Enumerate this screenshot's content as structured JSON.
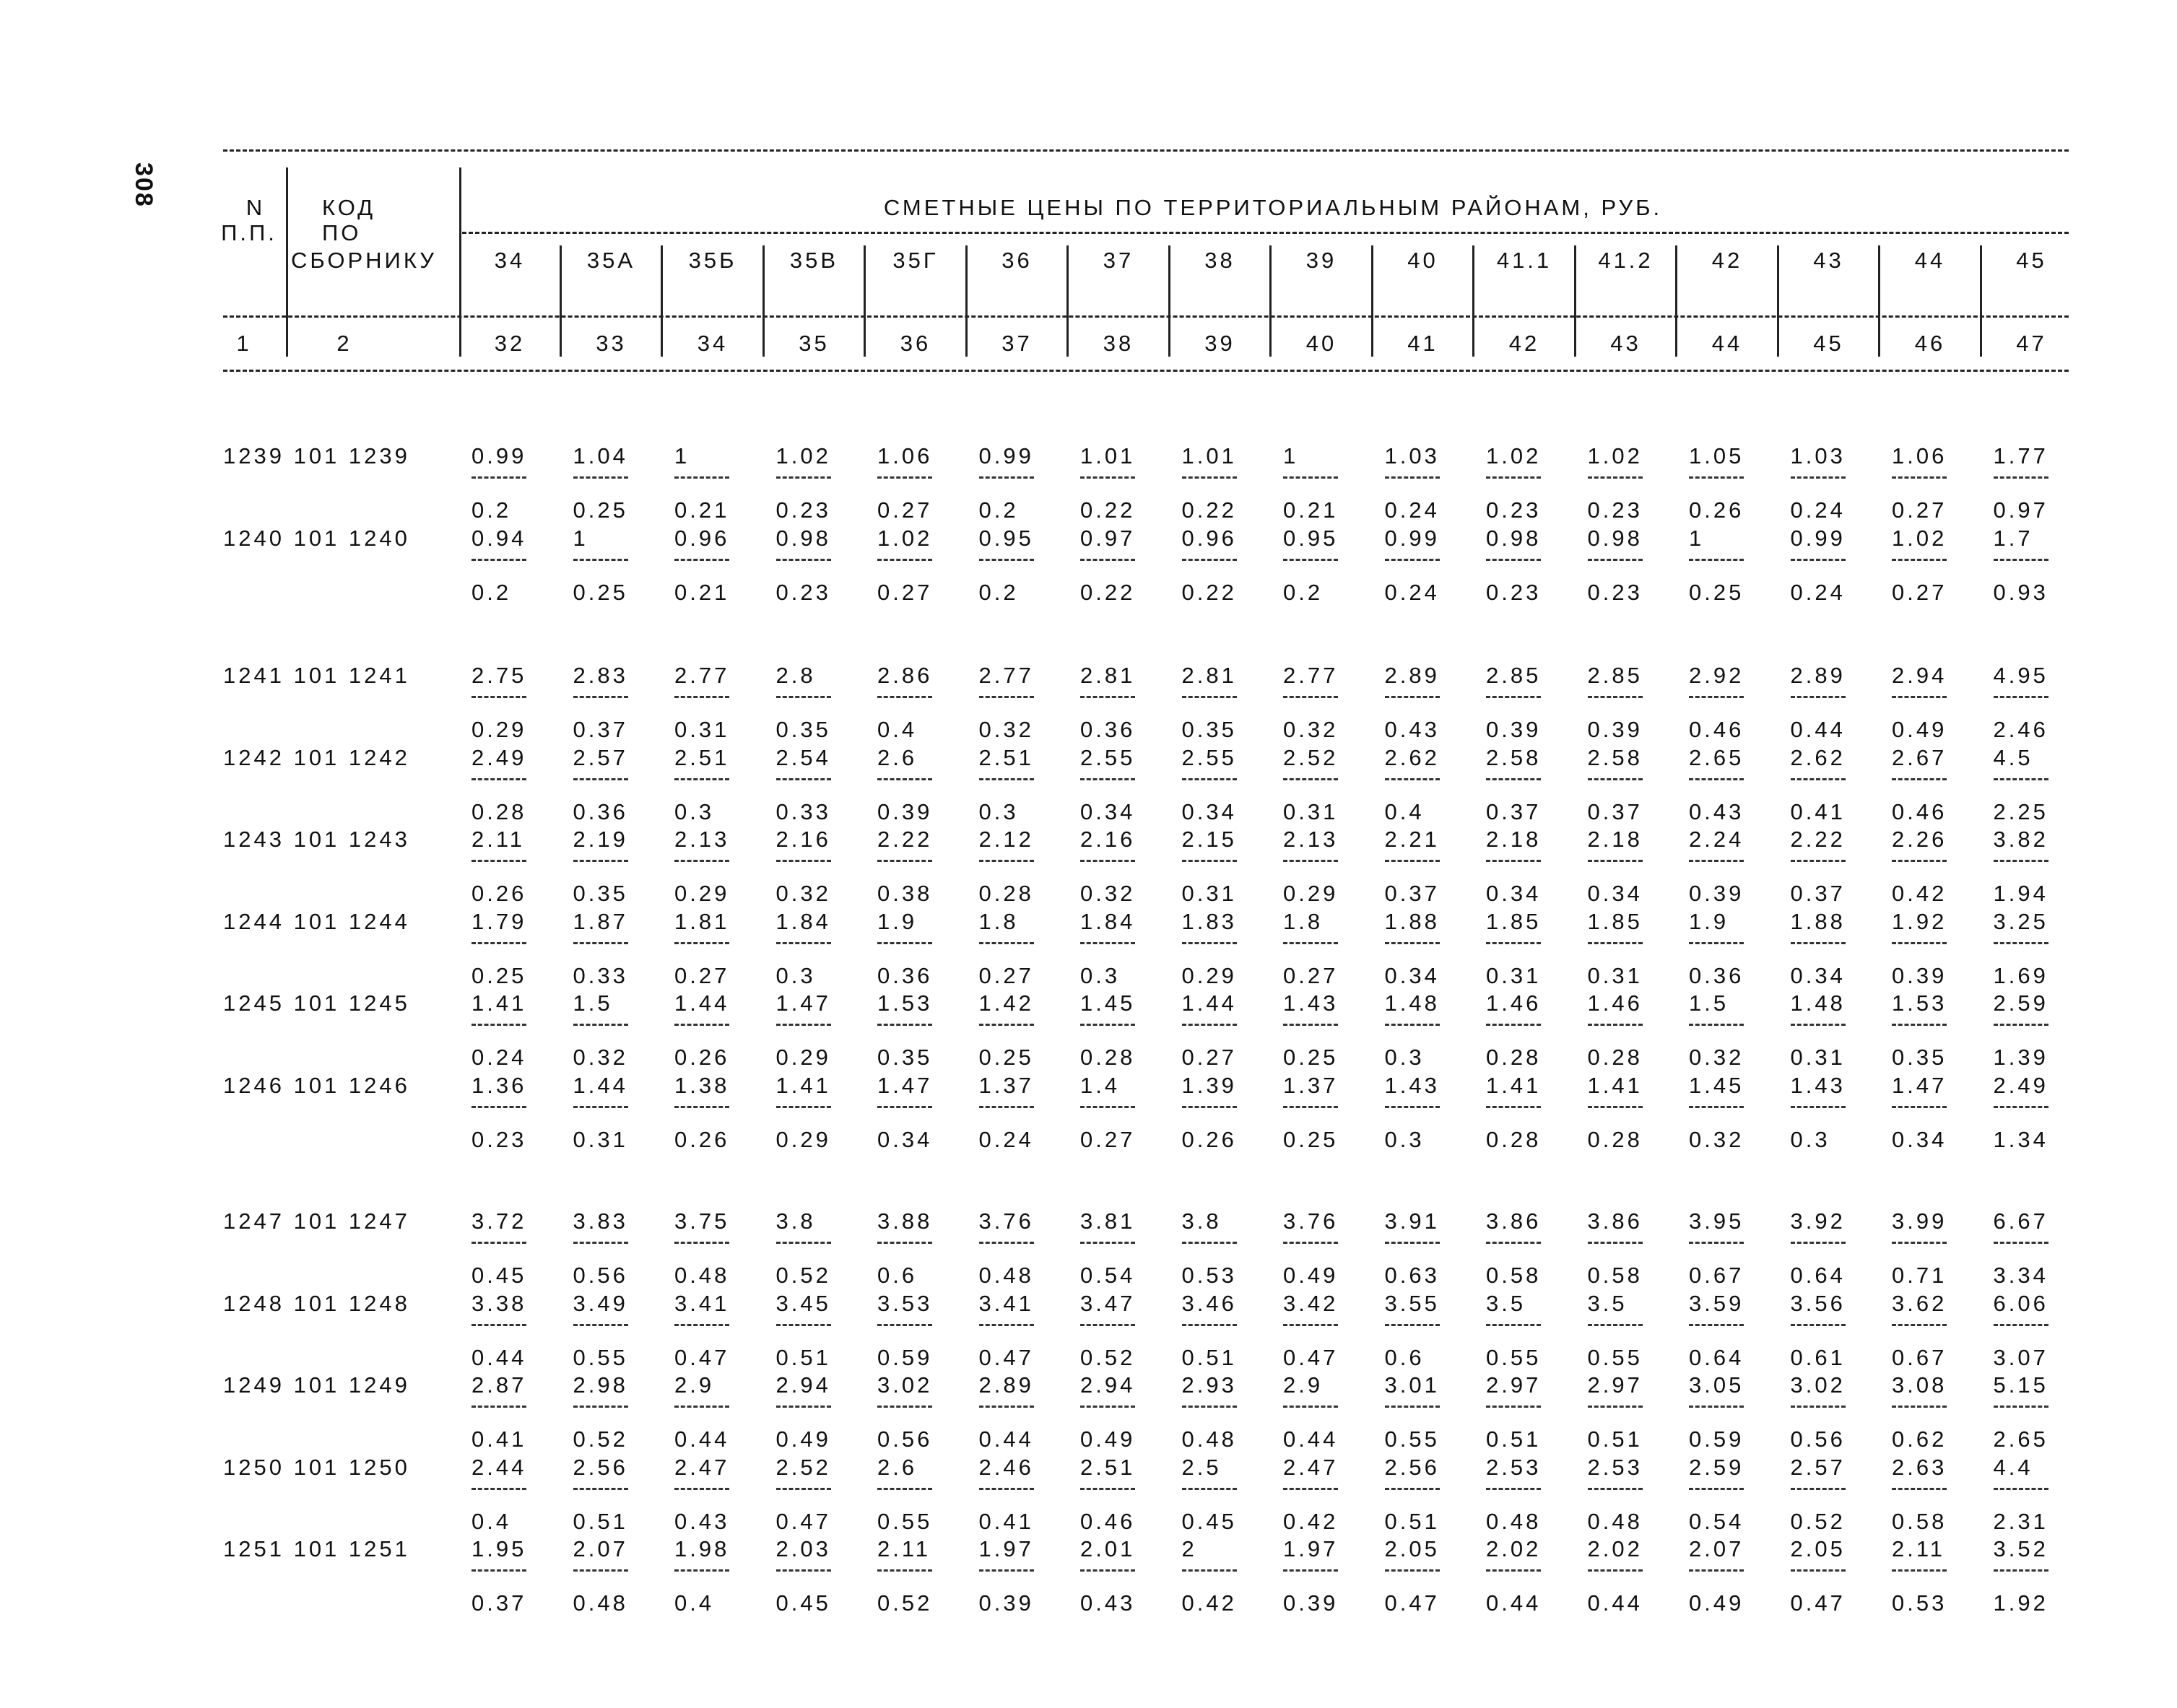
{
  "page_number": "308",
  "header": {
    "col_n": [
      "N",
      "П.П."
    ],
    "col_code": [
      "КОД",
      "ПО",
      "СБОРНИКУ"
    ],
    "title": "СМЕТНЫЕ ЦЕНЫ ПО ТЕРРИТОРИАЛЬНЫМ РАЙОНАМ, РУБ.",
    "regions": [
      "34",
      "35А",
      "35Б",
      "35В",
      "35Г",
      "36",
      "37",
      "38",
      "39",
      "40",
      "41.1",
      "41.2",
      "42",
      "43",
      "44",
      "45"
    ],
    "col_numbers_left": [
      "1",
      "2"
    ],
    "col_numbers": [
      "32",
      "33",
      "34",
      "35",
      "36",
      "37",
      "38",
      "39",
      "40",
      "41",
      "42",
      "43",
      "44",
      "45",
      "46",
      "47"
    ]
  },
  "groups": [
    {
      "items": [
        {
          "n": "1239",
          "code": "101 1239",
          "top": [
            "0.99",
            "1.04",
            "1",
            "1.02",
            "1.06",
            "0.99",
            "1.01",
            "1.01",
            "1",
            "1.03",
            "1.02",
            "1.02",
            "1.05",
            "1.03",
            "1.06",
            "1.77"
          ],
          "bottom": [
            "0.2",
            "0.25",
            "0.21",
            "0.23",
            "0.27",
            "0.2",
            "0.22",
            "0.22",
            "0.21",
            "0.24",
            "0.23",
            "0.23",
            "0.26",
            "0.24",
            "0.27",
            "0.97"
          ]
        },
        {
          "n": "1240",
          "code": "101 1240",
          "top": [
            "0.94",
            "1",
            "0.96",
            "0.98",
            "1.02",
            "0.95",
            "0.97",
            "0.96",
            "0.95",
            "0.99",
            "0.98",
            "0.98",
            "1",
            "0.99",
            "1.02",
            "1.7"
          ],
          "bottom": [
            "0.2",
            "0.25",
            "0.21",
            "0.23",
            "0.27",
            "0.2",
            "0.22",
            "0.22",
            "0.2",
            "0.24",
            "0.23",
            "0.23",
            "0.25",
            "0.24",
            "0.27",
            "0.93"
          ]
        }
      ]
    },
    {
      "items": [
        {
          "n": "1241",
          "code": "101 1241",
          "top": [
            "2.75",
            "2.83",
            "2.77",
            "2.8",
            "2.86",
            "2.77",
            "2.81",
            "2.81",
            "2.77",
            "2.89",
            "2.85",
            "2.85",
            "2.92",
            "2.89",
            "2.94",
            "4.95"
          ],
          "bottom": [
            "0.29",
            "0.37",
            "0.31",
            "0.35",
            "0.4",
            "0.32",
            "0.36",
            "0.35",
            "0.32",
            "0.43",
            "0.39",
            "0.39",
            "0.46",
            "0.44",
            "0.49",
            "2.46"
          ]
        },
        {
          "n": "1242",
          "code": "101 1242",
          "top": [
            "2.49",
            "2.57",
            "2.51",
            "2.54",
            "2.6",
            "2.51",
            "2.55",
            "2.55",
            "2.52",
            "2.62",
            "2.58",
            "2.58",
            "2.65",
            "2.62",
            "2.67",
            "4.5"
          ],
          "bottom": [
            "0.28",
            "0.36",
            "0.3",
            "0.33",
            "0.39",
            "0.3",
            "0.34",
            "0.34",
            "0.31",
            "0.4",
            "0.37",
            "0.37",
            "0.43",
            "0.41",
            "0.46",
            "2.25"
          ]
        },
        {
          "n": "1243",
          "code": "101 1243",
          "top": [
            "2.11",
            "2.19",
            "2.13",
            "2.16",
            "2.22",
            "2.12",
            "2.16",
            "2.15",
            "2.13",
            "2.21",
            "2.18",
            "2.18",
            "2.24",
            "2.22",
            "2.26",
            "3.82"
          ],
          "bottom": [
            "0.26",
            "0.35",
            "0.29",
            "0.32",
            "0.38",
            "0.28",
            "0.32",
            "0.31",
            "0.29",
            "0.37",
            "0.34",
            "0.34",
            "0.39",
            "0.37",
            "0.42",
            "1.94"
          ]
        },
        {
          "n": "1244",
          "code": "101 1244",
          "top": [
            "1.79",
            "1.87",
            "1.81",
            "1.84",
            "1.9",
            "1.8",
            "1.84",
            "1.83",
            "1.8",
            "1.88",
            "1.85",
            "1.85",
            "1.9",
            "1.88",
            "1.92",
            "3.25"
          ],
          "bottom": [
            "0.25",
            "0.33",
            "0.27",
            "0.3",
            "0.36",
            "0.27",
            "0.3",
            "0.29",
            "0.27",
            "0.34",
            "0.31",
            "0.31",
            "0.36",
            "0.34",
            "0.39",
            "1.69"
          ]
        },
        {
          "n": "1245",
          "code": "101 1245",
          "top": [
            "1.41",
            "1.5",
            "1.44",
            "1.47",
            "1.53",
            "1.42",
            "1.45",
            "1.44",
            "1.43",
            "1.48",
            "1.46",
            "1.46",
            "1.5",
            "1.48",
            "1.53",
            "2.59"
          ],
          "bottom": [
            "0.24",
            "0.32",
            "0.26",
            "0.29",
            "0.35",
            "0.25",
            "0.28",
            "0.27",
            "0.25",
            "0.3",
            "0.28",
            "0.28",
            "0.32",
            "0.31",
            "0.35",
            "1.39"
          ]
        },
        {
          "n": "1246",
          "code": "101 1246",
          "top": [
            "1.36",
            "1.44",
            "1.38",
            "1.41",
            "1.47",
            "1.37",
            "1.4",
            "1.39",
            "1.37",
            "1.43",
            "1.41",
            "1.41",
            "1.45",
            "1.43",
            "1.47",
            "2.49"
          ],
          "bottom": [
            "0.23",
            "0.31",
            "0.26",
            "0.29",
            "0.34",
            "0.24",
            "0.27",
            "0.26",
            "0.25",
            "0.3",
            "0.28",
            "0.28",
            "0.32",
            "0.3",
            "0.34",
            "1.34"
          ]
        }
      ]
    },
    {
      "items": [
        {
          "n": "1247",
          "code": "101 1247",
          "top": [
            "3.72",
            "3.83",
            "3.75",
            "3.8",
            "3.88",
            "3.76",
            "3.81",
            "3.8",
            "3.76",
            "3.91",
            "3.86",
            "3.86",
            "3.95",
            "3.92",
            "3.99",
            "6.67"
          ],
          "bottom": [
            "0.45",
            "0.56",
            "0.48",
            "0.52",
            "0.6",
            "0.48",
            "0.54",
            "0.53",
            "0.49",
            "0.63",
            "0.58",
            "0.58",
            "0.67",
            "0.64",
            "0.71",
            "3.34"
          ]
        },
        {
          "n": "1248",
          "code": "101 1248",
          "top": [
            "3.38",
            "3.49",
            "3.41",
            "3.45",
            "3.53",
            "3.41",
            "3.47",
            "3.46",
            "3.42",
            "3.55",
            "3.5",
            "3.5",
            "3.59",
            "3.56",
            "3.62",
            "6.06"
          ],
          "bottom": [
            "0.44",
            "0.55",
            "0.47",
            "0.51",
            "0.59",
            "0.47",
            "0.52",
            "0.51",
            "0.47",
            "0.6",
            "0.55",
            "0.55",
            "0.64",
            "0.61",
            "0.67",
            "3.07"
          ]
        },
        {
          "n": "1249",
          "code": "101 1249",
          "top": [
            "2.87",
            "2.98",
            "2.9",
            "2.94",
            "3.02",
            "2.89",
            "2.94",
            "2.93",
            "2.9",
            "3.01",
            "2.97",
            "2.97",
            "3.05",
            "3.02",
            "3.08",
            "5.15"
          ],
          "bottom": [
            "0.41",
            "0.52",
            "0.44",
            "0.49",
            "0.56",
            "0.44",
            "0.49",
            "0.48",
            "0.44",
            "0.55",
            "0.51",
            "0.51",
            "0.59",
            "0.56",
            "0.62",
            "2.65"
          ]
        },
        {
          "n": "1250",
          "code": "101 1250",
          "top": [
            "2.44",
            "2.56",
            "2.47",
            "2.52",
            "2.6",
            "2.46",
            "2.51",
            "2.5",
            "2.47",
            "2.56",
            "2.53",
            "2.53",
            "2.59",
            "2.57",
            "2.63",
            "4.4"
          ],
          "bottom": [
            "0.4",
            "0.51",
            "0.43",
            "0.47",
            "0.55",
            "0.41",
            "0.46",
            "0.45",
            "0.42",
            "0.51",
            "0.48",
            "0.48",
            "0.54",
            "0.52",
            "0.58",
            "2.31"
          ]
        },
        {
          "n": "1251",
          "code": "101 1251",
          "top": [
            "1.95",
            "2.07",
            "1.98",
            "2.03",
            "2.11",
            "1.97",
            "2.01",
            "2",
            "1.97",
            "2.05",
            "2.02",
            "2.02",
            "2.07",
            "2.05",
            "2.11",
            "3.52"
          ],
          "bottom": [
            "0.37",
            "0.48",
            "0.4",
            "0.45",
            "0.52",
            "0.39",
            "0.43",
            "0.42",
            "0.39",
            "0.47",
            "0.44",
            "0.44",
            "0.49",
            "0.47",
            "0.53",
            "1.92"
          ]
        }
      ]
    }
  ]
}
